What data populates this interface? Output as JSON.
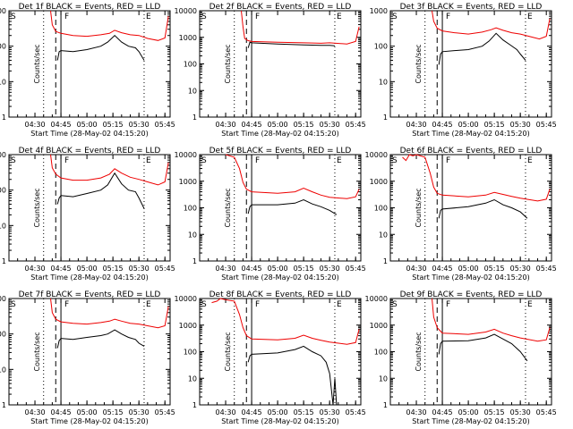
{
  "colors": {
    "events": "#000000",
    "lld": "#ee0000",
    "background": "#ffffff"
  },
  "chart_data": [
    {
      "type": "line",
      "title": "Det 1f BLACK = Events, RED = LLD",
      "xlabel": "Start Time (28-May-02 04:15:20)",
      "ylabel": "Counts/sec",
      "yscale": "log",
      "ylim": [
        1,
        1000
      ],
      "y_ticks": [
        "1",
        "10",
        "100",
        "1000"
      ],
      "x_ticks": [
        "04:30",
        "04:45",
        "05:00",
        "05:15",
        "05:30",
        "05:45"
      ],
      "markers": [
        "S",
        "F",
        "E"
      ],
      "series": [
        {
          "name": "LLD",
          "color": "#ee0000",
          "x": [
            "04:39",
            "04:40",
            "04:42",
            "04:45",
            "04:52",
            "05:00",
            "05:08",
            "05:13",
            "05:16",
            "05:20",
            "05:25",
            "05:30",
            "05:35",
            "05:41",
            "05:45",
            "05:47"
          ],
          "y": [
            1000,
            400,
            260,
            230,
            200,
            190,
            210,
            230,
            280,
            240,
            210,
            200,
            165,
            145,
            170,
            700
          ]
        },
        {
          "name": "Events",
          "color": "#000000",
          "x": [
            "04:43",
            "04:44",
            "04:45",
            "04:52",
            "05:00",
            "05:08",
            "05:12",
            "05:16",
            "05:20",
            "05:24",
            "05:28",
            "05:30",
            "05:33"
          ],
          "y": [
            40,
            70,
            75,
            70,
            80,
            100,
            130,
            200,
            130,
            100,
            90,
            70,
            40
          ]
        }
      ]
    },
    {
      "type": "line",
      "title": "Det 2f BLACK = Events, RED = LLD",
      "xlabel": "Start Time (28-May-02 04:15:20)",
      "ylabel": "Counts/sec",
      "yscale": "log",
      "ylim": [
        1,
        10000
      ],
      "y_ticks": [
        "1",
        "10",
        "100",
        "1000",
        "10000"
      ],
      "x_ticks": [
        "04:30",
        "04:45",
        "05:00",
        "05:15",
        "05:30",
        "05:45"
      ],
      "markers": [
        "S",
        "F",
        "E"
      ],
      "series": [
        {
          "name": "LLD",
          "color": "#ee0000",
          "x": [
            "04:39",
            "04:40",
            "04:41",
            "04:43",
            "04:45",
            "05:00",
            "05:15",
            "05:25",
            "05:30",
            "05:40",
            "05:45",
            "05:47"
          ],
          "y": [
            10000,
            2500,
            900,
            750,
            700,
            650,
            620,
            600,
            620,
            560,
            700,
            2500
          ]
        },
        {
          "name": "Events",
          "color": "#000000",
          "x": [
            "04:43",
            "04:44",
            "04:45",
            "05:00",
            "05:15",
            "05:25",
            "05:30",
            "05:33"
          ],
          "y": [
            400,
            650,
            620,
            560,
            520,
            500,
            500,
            480
          ]
        }
      ]
    },
    {
      "type": "line",
      "title": "Det 3f BLACK = Events, RED = LLD",
      "xlabel": "Start Time (28-May-02 04:15:20)",
      "ylabel": "Counts/sec",
      "yscale": "log",
      "ylim": [
        1,
        1000
      ],
      "y_ticks": [
        "1",
        "10",
        "100",
        "1000"
      ],
      "x_ticks": [
        "04:30",
        "04:45",
        "05:00",
        "05:15",
        "05:30",
        "05:45"
      ],
      "markers": [
        "S",
        "F",
        "E"
      ],
      "series": [
        {
          "name": "LLD",
          "color": "#ee0000",
          "x": [
            "04:39",
            "04:40",
            "04:42",
            "04:45",
            "04:52",
            "05:00",
            "05:08",
            "05:13",
            "05:16",
            "05:20",
            "05:25",
            "05:30",
            "05:35",
            "05:41",
            "05:45",
            "05:47"
          ],
          "y": [
            1000,
            500,
            320,
            270,
            240,
            220,
            250,
            290,
            330,
            280,
            240,
            220,
            190,
            160,
            190,
            600
          ]
        },
        {
          "name": "Events",
          "color": "#000000",
          "x": [
            "04:43",
            "04:44",
            "04:45",
            "04:52",
            "05:00",
            "05:08",
            "05:12",
            "05:16",
            "05:20",
            "05:24",
            "05:28",
            "05:30",
            "05:33"
          ],
          "y": [
            30,
            60,
            70,
            75,
            80,
            100,
            140,
            230,
            150,
            110,
            80,
            60,
            40
          ]
        }
      ]
    },
    {
      "type": "line",
      "title": "Det 4f BLACK = Events, RED = LLD",
      "xlabel": "Start Time (28-May-02 04:15:20)",
      "ylabel": "Counts/sec",
      "yscale": "log",
      "ylim": [
        1,
        1000
      ],
      "y_ticks": [
        "1",
        "10",
        "100",
        "1000"
      ],
      "x_ticks": [
        "04:30",
        "04:45",
        "05:00",
        "05:15",
        "05:30",
        "05:45"
      ],
      "markers": [
        "S",
        "F",
        "E"
      ],
      "series": [
        {
          "name": "LLD",
          "color": "#ee0000",
          "x": [
            "04:39",
            "04:40",
            "04:42",
            "04:45",
            "04:52",
            "05:00",
            "05:08",
            "05:13",
            "05:16",
            "05:20",
            "05:25",
            "05:30",
            "05:35",
            "05:41",
            "05:45",
            "05:47"
          ],
          "y": [
            1000,
            420,
            280,
            220,
            190,
            190,
            220,
            280,
            400,
            300,
            230,
            200,
            170,
            140,
            170,
            600
          ]
        },
        {
          "name": "Events",
          "color": "#000000",
          "x": [
            "04:43",
            "04:44",
            "04:45",
            "04:52",
            "05:00",
            "05:08",
            "05:12",
            "05:16",
            "05:20",
            "05:24",
            "05:28",
            "05:30",
            "05:33"
          ],
          "y": [
            40,
            60,
            70,
            65,
            80,
            100,
            140,
            300,
            150,
            100,
            90,
            60,
            30
          ]
        }
      ]
    },
    {
      "type": "line",
      "title": "Det 5f BLACK = Events, RED = LLD",
      "xlabel": "Start Time (28-May-02 04:15:20)",
      "ylabel": "Counts/sec",
      "yscale": "log",
      "ylim": [
        1,
        10000
      ],
      "y_ticks": [
        "1",
        "10",
        "100",
        "1000",
        "10000"
      ],
      "x_ticks": [
        "04:30",
        "04:45",
        "05:00",
        "05:15",
        "05:30",
        "05:45"
      ],
      "markers": [
        "S",
        "F",
        "E"
      ],
      "series": [
        {
          "name": "LLD",
          "color": "#ee0000",
          "x": [
            "04:30",
            "04:35",
            "04:38",
            "04:40",
            "04:42",
            "04:45",
            "05:00",
            "05:10",
            "05:15",
            "05:20",
            "05:25",
            "05:30",
            "05:40",
            "05:45",
            "05:47"
          ],
          "y": [
            10000,
            8000,
            3000,
            900,
            500,
            400,
            350,
            400,
            550,
            400,
            300,
            250,
            220,
            260,
            500
          ]
        },
        {
          "name": "Events",
          "color": "#000000",
          "x": [
            "04:43",
            "04:44",
            "04:45",
            "05:00",
            "05:10",
            "05:15",
            "05:20",
            "05:25",
            "05:30",
            "05:34"
          ],
          "y": [
            60,
            110,
            130,
            130,
            150,
            200,
            140,
            110,
            80,
            55
          ]
        }
      ]
    },
    {
      "type": "line",
      "title": "Det 6f BLACK = Events, RED = LLD",
      "xlabel": "Start Time (28-May-02 04:15:20)",
      "ylabel": "Counts/sec",
      "yscale": "log",
      "ylim": [
        1,
        10000
      ],
      "y_ticks": [
        "1",
        "10",
        "100",
        "1000",
        "10000"
      ],
      "x_ticks": [
        "04:30",
        "04:45",
        "05:00",
        "05:15",
        "05:30",
        "05:45"
      ],
      "markers": [
        "S",
        "F",
        "E"
      ],
      "series": [
        {
          "name": "LLD",
          "color": "#ee0000",
          "x": [
            "04:22",
            "04:24",
            "04:26",
            "04:28",
            "04:30",
            "04:35",
            "04:38",
            "04:40",
            "04:42",
            "04:45",
            "05:00",
            "05:10",
            "05:15",
            "05:20",
            "05:25",
            "05:30",
            "05:40",
            "05:45",
            "05:47"
          ],
          "y": [
            8000,
            6000,
            10000,
            9000,
            10000,
            8000,
            2000,
            600,
            350,
            300,
            260,
            300,
            380,
            320,
            270,
            230,
            180,
            210,
            500
          ]
        },
        {
          "name": "Events",
          "color": "#000000",
          "x": [
            "04:43",
            "04:44",
            "04:45",
            "05:00",
            "05:10",
            "05:15",
            "05:20",
            "05:25",
            "05:30",
            "05:34"
          ],
          "y": [
            40,
            80,
            90,
            110,
            150,
            200,
            130,
            100,
            70,
            40
          ]
        }
      ]
    },
    {
      "type": "line",
      "title": "Det 7f BLACK = Events, RED = LLD",
      "xlabel": "Start Time (28-May-02 04:15:20)",
      "ylabel": "Counts/sec",
      "yscale": "log",
      "ylim": [
        1,
        1000
      ],
      "y_ticks": [
        "1",
        "10",
        "100",
        "1000"
      ],
      "x_ticks": [
        "04:30",
        "04:45",
        "05:00",
        "05:15",
        "05:30",
        "05:45"
      ],
      "markers": [
        "S",
        "F",
        "E"
      ],
      "series": [
        {
          "name": "LLD",
          "color": "#ee0000",
          "x": [
            "04:39",
            "04:40",
            "04:42",
            "04:45",
            "04:52",
            "05:00",
            "05:08",
            "05:13",
            "05:16",
            "05:20",
            "05:25",
            "05:30",
            "05:35",
            "05:41",
            "05:45",
            "05:47"
          ],
          "y": [
            1000,
            400,
            260,
            220,
            200,
            190,
            210,
            230,
            260,
            230,
            200,
            190,
            170,
            150,
            170,
            600
          ]
        },
        {
          "name": "Events",
          "color": "#000000",
          "x": [
            "04:43",
            "04:44",
            "04:45",
            "04:52",
            "05:00",
            "05:08",
            "05:12",
            "05:16",
            "05:20",
            "05:24",
            "05:28",
            "05:30",
            "05:33"
          ],
          "y": [
            40,
            65,
            75,
            70,
            80,
            90,
            100,
            130,
            100,
            80,
            70,
            55,
            45
          ]
        }
      ]
    },
    {
      "type": "line",
      "title": "Det 8f BLACK = Events, RED = LLD",
      "xlabel": "Start Time (28-May-02 04:15:20)",
      "ylabel": "Counts/sec",
      "yscale": "log",
      "ylim": [
        1,
        10000
      ],
      "y_ticks": [
        "1",
        "10",
        "100",
        "1000",
        "10000"
      ],
      "x_ticks": [
        "04:30",
        "04:45",
        "05:00",
        "05:15",
        "05:30",
        "05:45"
      ],
      "markers": [
        "S",
        "F",
        "E"
      ],
      "series": [
        {
          "name": "LLD",
          "color": "#ee0000",
          "x": [
            "04:22",
            "04:25",
            "04:27",
            "04:30",
            "04:35",
            "04:38",
            "04:40",
            "04:42",
            "04:45",
            "05:00",
            "05:10",
            "05:15",
            "05:20",
            "05:25",
            "05:30",
            "05:40",
            "05:45",
            "05:47"
          ],
          "y": [
            7000,
            8000,
            10000,
            9000,
            8000,
            2500,
            800,
            400,
            300,
            280,
            320,
            420,
            320,
            270,
            230,
            190,
            220,
            700
          ]
        },
        {
          "name": "Events",
          "color": "#000000",
          "x": [
            "04:43",
            "04:44",
            "04:45",
            "05:00",
            "05:10",
            "05:15",
            "05:20",
            "05:25",
            "05:28",
            "05:30",
            "05:32",
            "05:33",
            "05:34"
          ],
          "y": [
            40,
            70,
            80,
            90,
            120,
            160,
            100,
            70,
            40,
            15,
            1,
            10,
            1
          ]
        }
      ]
    },
    {
      "type": "line",
      "title": "Det 9f BLACK = Events, RED = LLD",
      "xlabel": "Start Time (28-May-02 04:15:20)",
      "ylabel": "Counts/sec",
      "yscale": "log",
      "ylim": [
        1,
        10000
      ],
      "y_ticks": [
        "1",
        "10",
        "100",
        "1000",
        "10000"
      ],
      "x_ticks": [
        "04:30",
        "04:45",
        "05:00",
        "05:15",
        "05:30",
        "05:45"
      ],
      "markers": [
        "S",
        "F",
        "E"
      ],
      "series": [
        {
          "name": "LLD",
          "color": "#ee0000",
          "x": [
            "04:39",
            "04:40",
            "04:42",
            "04:45",
            "05:00",
            "05:10",
            "05:15",
            "05:20",
            "05:25",
            "05:30",
            "05:40",
            "05:45",
            "05:47"
          ],
          "y": [
            10000,
            2000,
            800,
            500,
            450,
            550,
            700,
            500,
            400,
            330,
            250,
            280,
            800
          ]
        },
        {
          "name": "Events",
          "color": "#000000",
          "x": [
            "04:43",
            "04:44",
            "04:45",
            "05:00",
            "05:10",
            "05:15",
            "05:20",
            "05:25",
            "05:30",
            "05:34"
          ],
          "y": [
            80,
            200,
            250,
            260,
            330,
            450,
            300,
            200,
            100,
            45
          ]
        }
      ]
    }
  ]
}
